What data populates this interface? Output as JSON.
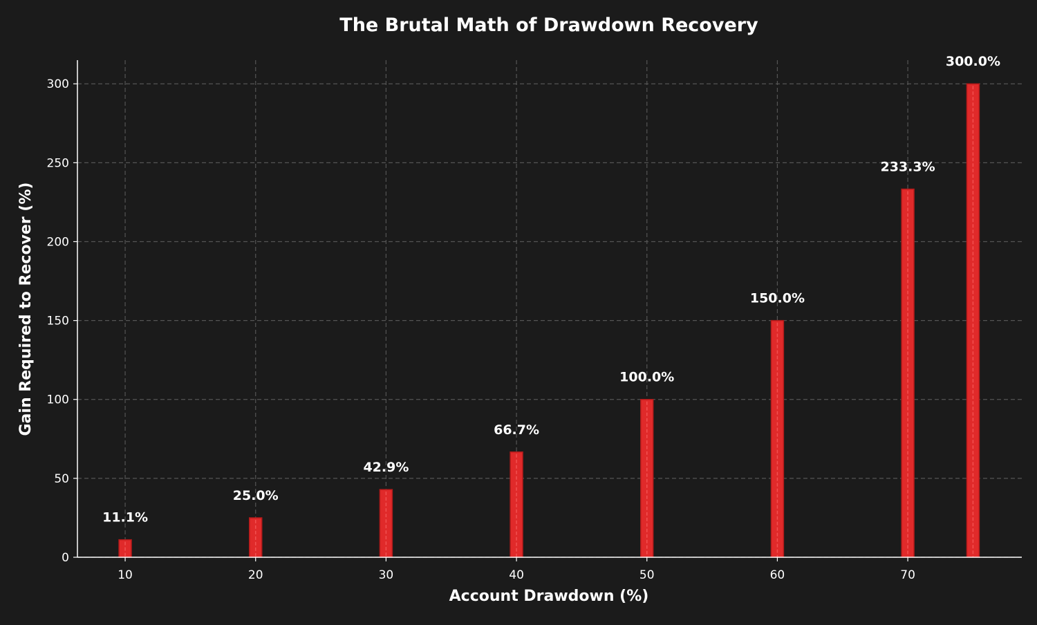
{
  "chart_data": {
    "type": "bar",
    "title": "The Brutal Math of Drawdown Recovery",
    "xlabel": "Account Drawdown (%)",
    "ylabel": "Gain Required to Recover (%)",
    "x": [
      10,
      20,
      30,
      40,
      50,
      60,
      70,
      75
    ],
    "values": [
      11.1,
      25.0,
      42.9,
      66.7,
      100.0,
      150.0,
      233.3,
      300.0
    ],
    "data_labels": [
      "11.1%",
      "25.0%",
      "42.9%",
      "66.7%",
      "100.0%",
      "150.0%",
      "233.3%",
      "300.0%"
    ],
    "xlim": [
      6.34,
      78.74
    ],
    "ylim": [
      0,
      315
    ],
    "xticks": [
      10,
      20,
      30,
      40,
      50,
      60,
      70
    ],
    "yticks": [
      0,
      50,
      100,
      150,
      200,
      250,
      300
    ],
    "grid": true,
    "bar_color": "#e02a2a",
    "background": "#1b1b1b"
  }
}
